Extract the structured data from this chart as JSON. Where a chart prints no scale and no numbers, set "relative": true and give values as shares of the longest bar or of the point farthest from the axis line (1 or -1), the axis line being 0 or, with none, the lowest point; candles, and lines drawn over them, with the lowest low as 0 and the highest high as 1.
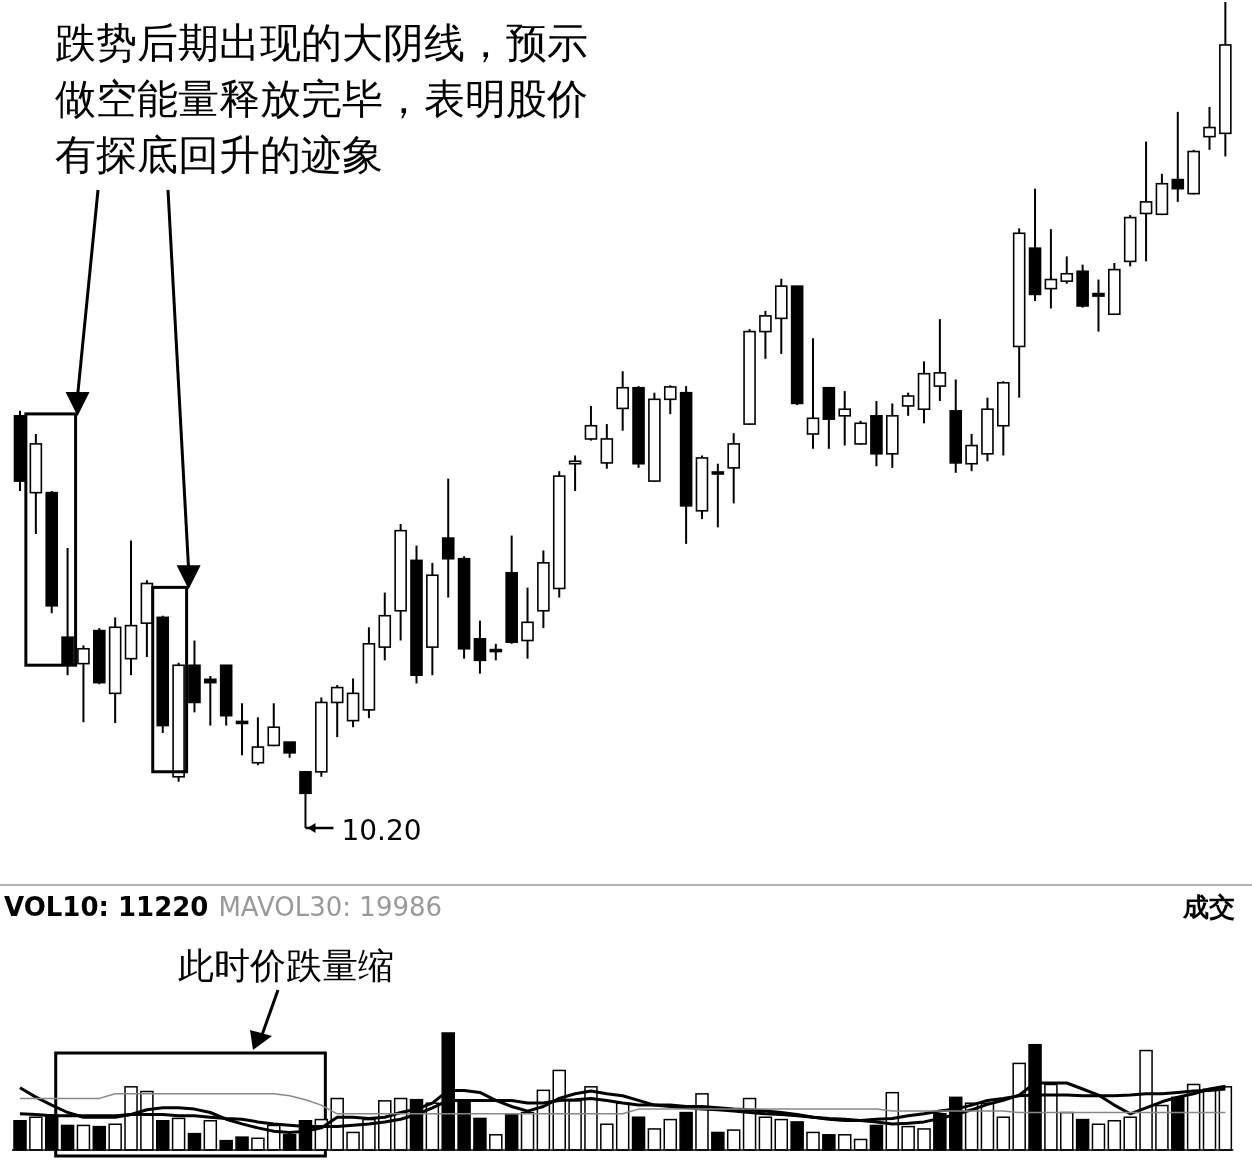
{
  "chart_data": [
    {
      "type": "candlestick",
      "relative": true,
      "color": "#000000",
      "categories": [
        null,
        null,
        null,
        null,
        null,
        null,
        null,
        null,
        null,
        null,
        null,
        null,
        null,
        null,
        null,
        null,
        null,
        null,
        null,
        null,
        null,
        null,
        null,
        null,
        null,
        null,
        null,
        null,
        null,
        null,
        null,
        null,
        null,
        null,
        null,
        null,
        null,
        null,
        null,
        null,
        null,
        null,
        null,
        null,
        null,
        null,
        null,
        null,
        null,
        null,
        null,
        null,
        null,
        null,
        null,
        null,
        null,
        null,
        null,
        null,
        null,
        null,
        null,
        null,
        null,
        null,
        null,
        null,
        null,
        null,
        null,
        null,
        null,
        null,
        null,
        null,
        null
      ],
      "ohlc": [
        [
          0.499,
          0.505,
          0.408,
          0.42
        ],
        [
          0.406,
          0.477,
          0.356,
          0.465
        ],
        [
          0.406,
          0.408,
          0.26,
          0.269
        ],
        [
          0.231,
          0.339,
          0.185,
          0.199
        ],
        [
          0.199,
          0.221,
          0.128,
          0.217
        ],
        [
          0.239,
          0.242,
          0.174,
          0.176
        ],
        [
          0.163,
          0.255,
          0.127,
          0.243
        ],
        [
          0.205,
          0.348,
          0.185,
          0.245
        ],
        [
          0.248,
          0.3,
          0.207,
          0.296
        ],
        [
          0.255,
          0.257,
          0.115,
          0.124
        ],
        [
          0.062,
          0.2,
          0.056,
          0.197
        ],
        [
          0.197,
          0.227,
          0.14,
          0.152
        ],
        [
          0.18,
          0.184,
          0.124,
          0.176
        ],
        [
          0.197,
          0.197,
          0.124,
          0.136
        ],
        [
          0.129,
          0.151,
          0.088,
          0.128
        ],
        [
          0.079,
          0.134,
          0.076,
          0.098
        ],
        [
          0.1,
          0.151,
          0.099,
          0.122
        ],
        [
          0.104,
          0.104,
          0.085,
          0.091
        ],
        [
          0.068,
          0.069,
          0,
          0.042
        ],
        [
          0.068,
          0.158,
          0.062,
          0.152
        ],
        [
          0.152,
          0.173,
          0.11,
          0.17
        ],
        [
          0.13,
          0.181,
          0.122,
          0.163
        ],
        [
          0.143,
          0.243,
          0.133,
          0.223
        ],
        [
          0.219,
          0.285,
          0.203,
          0.257
        ],
        [
          0.263,
          0.368,
          0.227,
          0.36
        ],
        [
          0.324,
          0.342,
          0.175,
          0.185
        ],
        [
          0.219,
          0.321,
          0.185,
          0.306
        ],
        [
          0.351,
          0.423,
          0.279,
          0.326
        ],
        [
          0.326,
          0.329,
          0.205,
          0.217
        ],
        [
          0.229,
          0.251,
          0.187,
          0.203
        ],
        [
          0.216,
          0.223,
          0.203,
          0.215
        ],
        [
          0.309,
          0.354,
          0.223,
          0.225
        ],
        [
          0.227,
          0.291,
          0.205,
          0.249
        ],
        [
          0.263,
          0.336,
          0.242,
          0.321
        ],
        [
          0.29,
          0.432,
          0.279,
          0.426
        ],
        [
          0.441,
          0.451,
          0.408,
          0.444
        ],
        [
          0.471,
          0.511,
          0.469,
          0.487
        ],
        [
          0.442,
          0.489,
          0.435,
          0.471
        ],
        [
          0.508,
          0.553,
          0.481,
          0.533
        ],
        [
          0.533,
          0.535,
          0.436,
          0.441
        ],
        [
          0.42,
          0.527,
          0.419,
          0.519
        ],
        [
          0.519,
          0.536,
          0.501,
          0.534
        ],
        [
          0.527,
          0.535,
          0.344,
          0.39
        ],
        [
          0.384,
          0.451,
          0.374,
          0.448
        ],
        [
          0.431,
          0.441,
          0.364,
          0.43
        ],
        [
          0.436,
          0.478,
          0.393,
          0.465
        ],
        [
          0.489,
          0.604,
          0.488,
          0.601
        ],
        [
          0.601,
          0.626,
          0.568,
          0.62
        ],
        [
          0.617,
          0.665,
          0.574,
          0.656
        ],
        [
          0.656,
          0.656,
          0.512,
          0.514
        ],
        [
          0.477,
          0.593,
          0.459,
          0.496
        ],
        [
          0.533,
          0.534,
          0.459,
          0.495
        ],
        [
          0.499,
          0.529,
          0.463,
          0.507
        ],
        [
          0.465,
          0.493,
          0.464,
          0.49
        ],
        [
          0.499,
          0.517,
          0.438,
          0.453
        ],
        [
          0.453,
          0.514,
          0.436,
          0.499
        ],
        [
          0.511,
          0.527,
          0.499,
          0.523
        ],
        [
          0.507,
          0.565,
          0.49,
          0.55
        ],
        [
          0.535,
          0.616,
          0.517,
          0.551
        ],
        [
          0.505,
          0.543,
          0.43,
          0.442
        ],
        [
          0.441,
          0.477,
          0.432,
          0.463
        ],
        [
          0.453,
          0.521,
          0.444,
          0.507
        ],
        [
          0.487,
          0.541,
          0.451,
          0.539
        ],
        [
          0.583,
          0.726,
          0.521,
          0.72
        ],
        [
          0.702,
          0.774,
          0.638,
          0.646
        ],
        [
          0.653,
          0.725,
          0.629,
          0.664
        ],
        [
          0.662,
          0.692,
          0.659,
          0.671
        ],
        [
          0.674,
          0.682,
          0.63,
          0.632
        ],
        [
          0.647,
          0.664,
          0.601,
          0.644
        ],
        [
          0.622,
          0.684,
          0.621,
          0.676
        ],
        [
          0.686,
          0.742,
          0.68,
          0.739
        ],
        [
          0.744,
          0.831,
          0.686,
          0.758
        ],
        [
          0.743,
          0.792,
          0.742,
          0.78
        ],
        [
          0.785,
          0.867,
          0.758,
          0.774
        ],
        [
          0.768,
          0.821,
          0.767,
          0.819
        ],
        [
          0.837,
          0.873,
          0.821,
          0.848
        ],
        [
          0.841,
          1,
          0.813,
          0.948
        ]
      ],
      "annotations": [
        "跌势后期出现的大阴线，预示做空能量释放完毕，表明股价有探底回升的迹象",
        "10.20"
      ]
    },
    {
      "type": "bar",
      "relative": true,
      "ylabel": "成交",
      "categories": [
        null,
        null,
        null,
        null,
        null,
        null,
        null,
        null,
        null,
        null,
        null,
        null,
        null,
        null,
        null,
        null,
        null,
        null,
        null,
        null,
        null,
        null,
        null,
        null,
        null,
        null,
        null,
        null,
        null,
        null,
        null,
        null,
        null,
        null,
        null,
        null,
        null,
        null,
        null,
        null,
        null,
        null,
        null,
        null,
        null,
        null,
        null,
        null,
        null,
        null,
        null,
        null,
        null,
        null,
        null,
        null,
        null,
        null,
        null,
        null,
        null,
        null,
        null,
        null,
        null,
        null,
        null,
        null,
        null,
        null,
        null,
        null,
        null,
        null,
        null,
        null,
        null
      ],
      "series": [
        {
          "type": "bar",
          "values": [
            0.25,
            0.28,
            0.3,
            0.21,
            0.21,
            0.2,
            0.22,
            0.54,
            0.5,
            0.25,
            0.27,
            0.14,
            0.25,
            0.08,
            0.11,
            0.1,
            0.21,
            0.13,
            0.25,
            0.26,
            0.44,
            0.15,
            0.26,
            0.42,
            0.44,
            0.43,
            0.4,
            1,
            0.42,
            0.27,
            0.13,
            0.3,
            0.32,
            0.51,
            0.68,
            0.42,
            0.54,
            0.22,
            0.4,
            0.28,
            0.18,
            0.26,
            0.32,
            0.48,
            0.15,
            0.17,
            0.44,
            0.28,
            0.26,
            0.24,
            0.15,
            0.13,
            0.13,
            0.09,
            0.21,
            0.49,
            0.2,
            0.18,
            0.31,
            0.45,
            0.4,
            0.4,
            0.28,
            0.74,
            0.9,
            0.56,
            0.32,
            0.26,
            0.22,
            0.25,
            0.28,
            0.85,
            0.38,
            0.45,
            0.56,
            0.52,
            0.54
          ],
          "colors": [
            "#000000",
            "#ffffff",
            "#000000",
            "#000000",
            "#ffffff",
            "#000000",
            "#ffffff",
            "#ffffff",
            "#ffffff",
            "#000000",
            "#ffffff",
            "#000000",
            "#ffffff",
            "#000000",
            "#000000",
            "#ffffff",
            "#ffffff",
            "#000000",
            "#000000",
            "#ffffff",
            "#ffffff",
            "#ffffff",
            "#ffffff",
            "#ffffff",
            "#ffffff",
            "#000000",
            "#ffffff",
            "#000000",
            "#000000",
            "#000000",
            "#ffffff",
            "#000000",
            "#ffffff",
            "#ffffff",
            "#ffffff",
            "#ffffff",
            "#ffffff",
            "#ffffff",
            "#ffffff",
            "#000000",
            "#ffffff",
            "#ffffff",
            "#000000",
            "#ffffff",
            "#000000",
            "#ffffff",
            "#ffffff",
            "#ffffff",
            "#ffffff",
            "#000000",
            "#ffffff",
            "#000000",
            "#ffffff",
            "#ffffff",
            "#000000",
            "#ffffff",
            "#ffffff",
            "#ffffff",
            "#000000",
            "#000000",
            "#ffffff",
            "#ffffff",
            "#ffffff",
            "#ffffff",
            "#000000",
            "#ffffff",
            "#ffffff",
            "#000000",
            "#ffffff",
            "#ffffff",
            "#ffffff",
            "#ffffff",
            "#ffffff",
            "#000000",
            "#ffffff",
            "#ffffff",
            "#ffffff"
          ]
        }
      ],
      "annotations": [
        "VOL10: 11220",
        "MAVOL30: 19986",
        "此时价跌量缩"
      ]
    },
    {
      "type": "line",
      "relative": true,
      "categories": [
        null,
        null,
        null,
        null,
        null,
        null,
        null,
        null,
        null,
        null,
        null,
        null,
        null,
        null,
        null,
        null,
        null,
        null,
        null,
        null,
        null,
        null,
        null,
        null,
        null,
        null,
        null,
        null,
        null,
        null,
        null,
        null,
        null,
        null,
        null,
        null,
        null,
        null,
        null,
        null,
        null,
        null,
        null,
        null,
        null,
        null,
        null,
        null,
        null,
        null,
        null,
        null,
        null,
        null,
        null,
        null,
        null,
        null,
        null,
        null,
        null,
        null,
        null,
        null,
        null,
        null,
        null,
        null,
        null,
        null,
        null,
        null,
        null,
        null,
        null,
        null,
        null
      ],
      "series": [
        {
          "color": "#000000",
          "values": [
            0.93,
            0.79,
            0.67,
            0.56,
            0.49,
            0.49,
            0.49,
            0.53,
            0.6,
            0.63,
            0.63,
            0.61,
            0.56,
            0.46,
            0.39,
            0.33,
            0.28,
            0.26,
            0.28,
            0.33,
            0.49,
            0.49,
            0.47,
            0.49,
            0.56,
            0.61,
            0.7,
            0.89,
            0.89,
            0.86,
            0.74,
            0.65,
            0.58,
            0.65,
            0.77,
            0.84,
            0.88,
            0.84,
            0.81,
            0.74,
            0.67,
            0.65,
            0.63,
            0.61,
            0.6,
            0.58,
            0.56,
            0.54,
            0.53,
            0.51,
            0.49,
            0.47,
            0.46,
            0.44,
            0.42,
            0.39,
            0.4,
            0.42,
            0.47,
            0.53,
            0.6,
            0.68,
            0.74,
            0.82,
            1,
            1,
            1,
            0.91,
            0.82,
            0.67,
            0.54,
            0.63,
            0.72,
            0.79,
            0.84,
            0.91,
            0.95
          ]
        },
        {
          "color": "#000000",
          "values": [
            0.54,
            0.53,
            0.51,
            0.51,
            0.51,
            0.51,
            0.51,
            0.53,
            0.53,
            0.53,
            0.51,
            0.51,
            0.49,
            0.47,
            0.46,
            0.42,
            0.39,
            0.37,
            0.35,
            0.35,
            0.35,
            0.37,
            0.39,
            0.42,
            0.46,
            0.53,
            0.63,
            0.74,
            0.74,
            0.74,
            0.74,
            0.74,
            0.7,
            0.7,
            0.74,
            0.75,
            0.77,
            0.74,
            0.7,
            0.67,
            0.67,
            0.67,
            0.65,
            0.65,
            0.63,
            0.61,
            0.6,
            0.58,
            0.56,
            0.53,
            0.49,
            0.46,
            0.44,
            0.44,
            0.46,
            0.47,
            0.51,
            0.54,
            0.58,
            0.61,
            0.67,
            0.74,
            0.77,
            0.81,
            0.82,
            0.82,
            0.82,
            0.81,
            0.81,
            0.81,
            0.82,
            0.84,
            0.84,
            0.86,
            0.88,
            0.89,
            0.91
          ]
        },
        {
          "color": "#888888",
          "values": [
            0.77,
            0.77,
            0.77,
            0.77,
            0.77,
            0.77,
            0.84,
            0.84,
            0.84,
            0.84,
            0.84,
            0.84,
            0.84,
            0.84,
            0.84,
            0.84,
            0.84,
            0.81,
            0.75,
            0.67,
            0.54,
            0.54,
            0.54,
            0.54,
            0.54,
            0.54,
            0.54,
            0.54,
            0.54,
            0.54,
            0.54,
            0.54,
            0.54,
            0.54,
            0.54,
            0.54,
            0.54,
            0.54,
            0.54,
            0.61,
            0.61,
            0.61,
            0.61,
            0.61,
            0.61,
            0.61,
            0.61,
            0.61,
            0.61,
            0.61,
            0.61,
            0.61,
            0.61,
            0.61,
            0.61,
            0.58,
            0.58,
            0.58,
            0.58,
            0.58,
            0.58,
            0.58,
            0.58,
            0.56,
            0.56,
            0.56,
            0.56,
            0.56,
            0.56,
            0.56,
            0.56,
            0.56,
            0.56,
            0.56,
            0.56,
            0.56,
            0.56
          ]
        }
      ]
    }
  ]
}
